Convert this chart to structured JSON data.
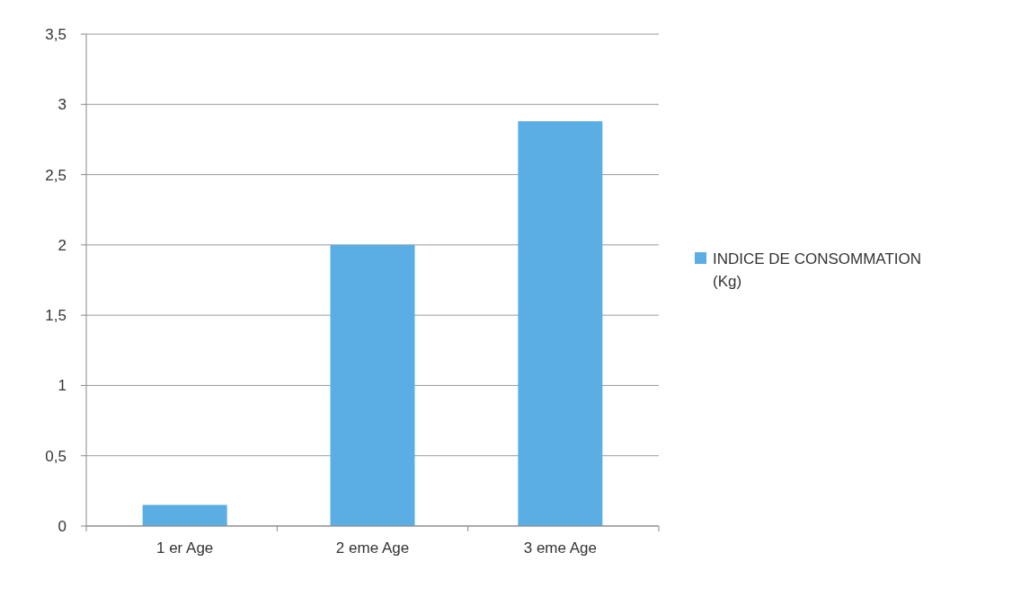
{
  "chart_data": {
    "type": "bar",
    "categories": [
      "1 er Age",
      "2 eme Age",
      "3 eme Age"
    ],
    "series": [
      {
        "name": "INDICE DE CONSOMMATION (Kg)",
        "color": "#5aaee3",
        "values": [
          0.15,
          2.0,
          2.88
        ]
      }
    ],
    "ylim": [
      0,
      3.5
    ],
    "yticks": [
      0,
      {
        "value": 0.5,
        "label": "0,5"
      },
      1,
      {
        "value": 1.5,
        "label": "1,5"
      },
      2,
      {
        "value": 2.5,
        "label": "2,5"
      },
      3,
      {
        "value": 3.5,
        "label": "3,5"
      }
    ],
    "grid": "y",
    "legend": "right"
  }
}
